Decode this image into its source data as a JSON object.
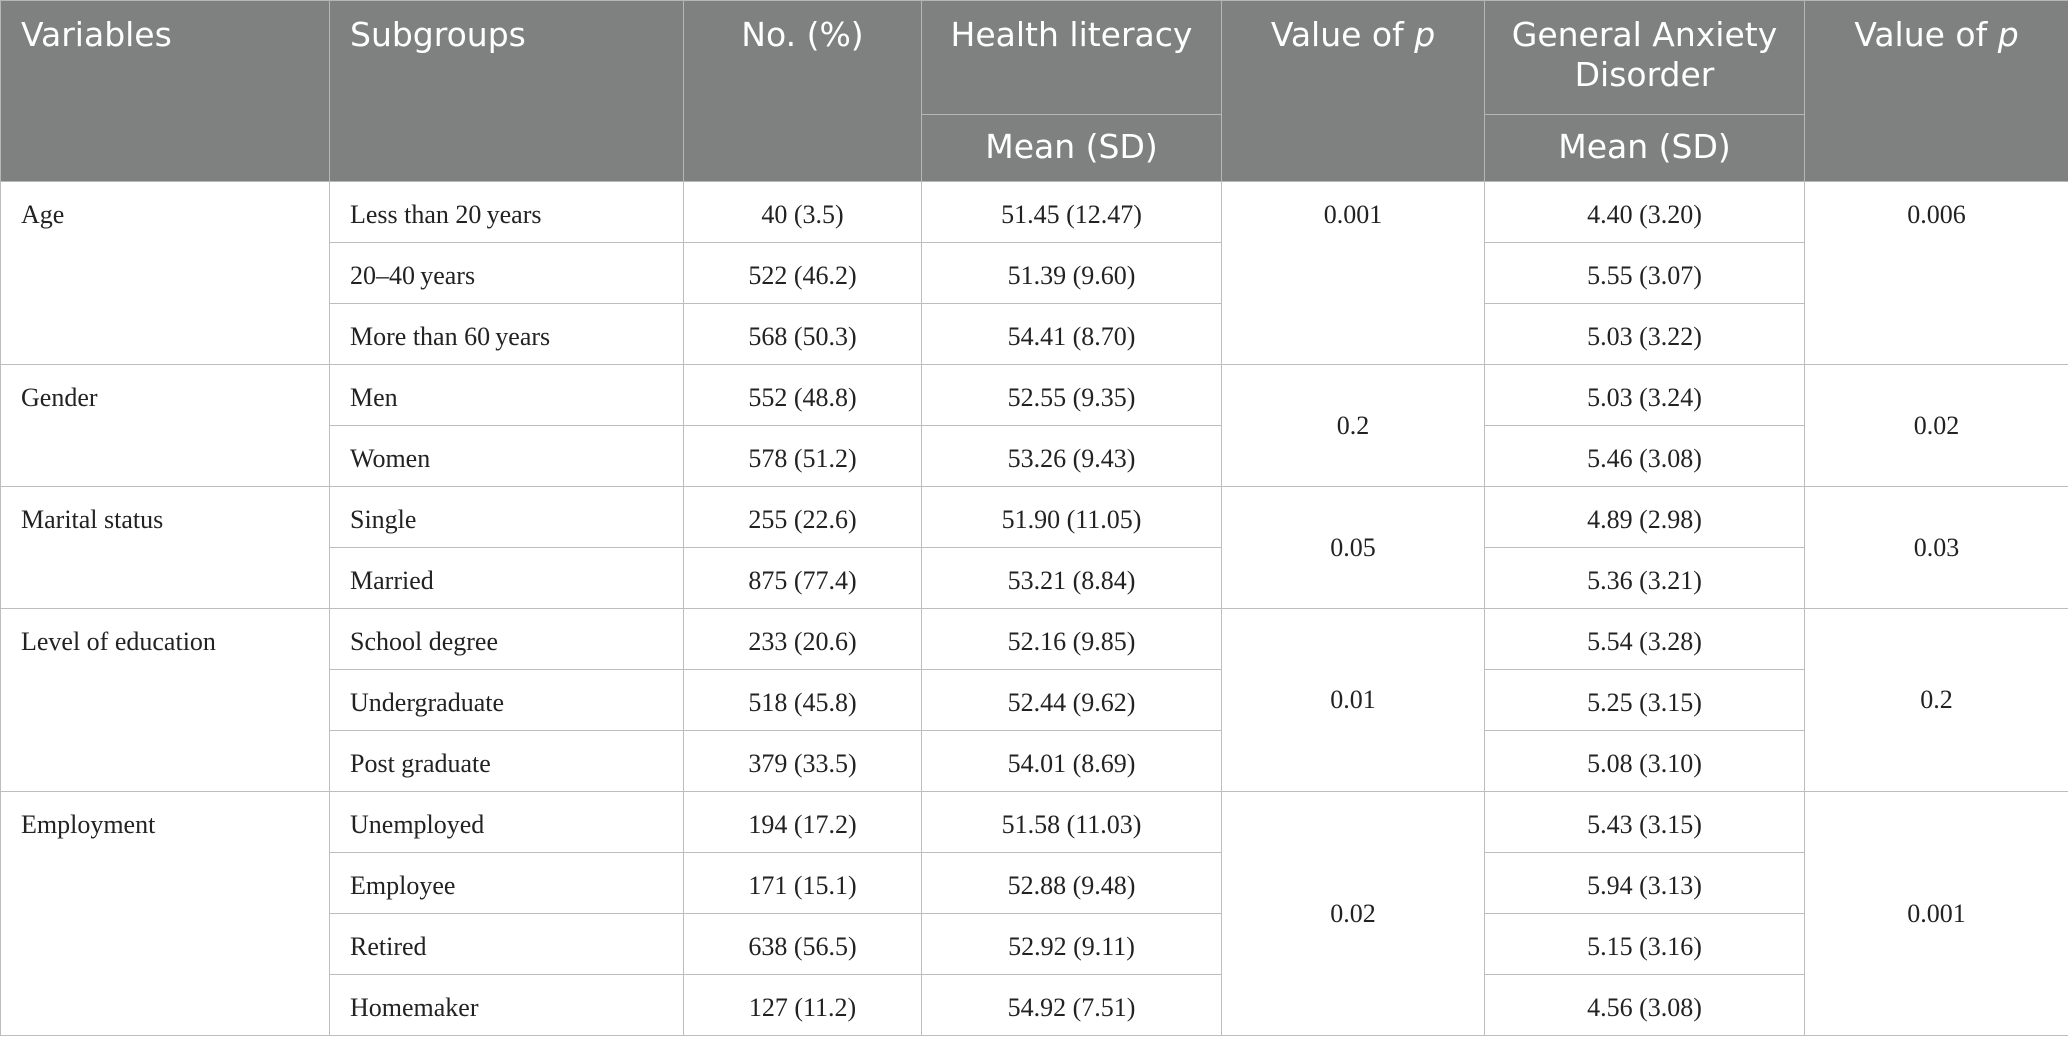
{
  "header": {
    "variables": "Variables",
    "subgroups": "Subgroups",
    "no_percent": "No. (%)",
    "health_literacy": "Health literacy",
    "value_of": "Value of ",
    "p": "p",
    "gad": "General Anxiety Disorder",
    "mean_sd_hl": "Mean (SD)",
    "mean_sd_gad": "Mean (SD)"
  },
  "groups": [
    {
      "variable": "Age",
      "p_hl": "0.001",
      "p_gad": "0.006",
      "rows": [
        {
          "subgroup": "Less than 20 years",
          "n": "40 (3.5)",
          "hl": "51.45 (12.47)",
          "gad": "4.40 (3.20)"
        },
        {
          "subgroup": "20–40 years",
          "n": "522 (46.2)",
          "hl": "51.39 (9.60)",
          "gad": "5.55 (3.07)"
        },
        {
          "subgroup": "More than 60 years",
          "n": "568 (50.3)",
          "hl": "54.41 (8.70)",
          "gad": "5.03 (3.22)"
        }
      ]
    },
    {
      "variable": "Gender",
      "p_hl": "0.2",
      "p_gad": "0.02",
      "rows": [
        {
          "subgroup": "Men",
          "n": "552 (48.8)",
          "hl": "52.55 (9.35)",
          "gad": "5.03 (3.24)"
        },
        {
          "subgroup": "Women",
          "n": "578 (51.2)",
          "hl": "53.26 (9.43)",
          "gad": "5.46 (3.08)"
        }
      ]
    },
    {
      "variable": "Marital status",
      "p_hl": "0.05",
      "p_gad": "0.03",
      "rows": [
        {
          "subgroup": "Single",
          "n": "255 (22.6)",
          "hl": "51.90 (11.05)",
          "gad": "4.89 (2.98)"
        },
        {
          "subgroup": "Married",
          "n": "875 (77.4)",
          "hl": "53.21 (8.84)",
          "gad": "5.36 (3.21)"
        }
      ]
    },
    {
      "variable": "Level of education",
      "p_hl": "0.01",
      "p_gad": "0.2",
      "rows": [
        {
          "subgroup": "School degree",
          "n": "233 (20.6)",
          "hl": "52.16 (9.85)",
          "gad": "5.54 (3.28)"
        },
        {
          "subgroup": "Undergraduate",
          "n": "518 (45.8)",
          "hl": "52.44 (9.62)",
          "gad": "5.25 (3.15)"
        },
        {
          "subgroup": "Post graduate",
          "n": "379 (33.5)",
          "hl": "54.01 (8.69)",
          "gad": "5.08 (3.10)"
        }
      ]
    },
    {
      "variable": "Employment",
      "p_hl": "0.02",
      "p_gad": "0.001",
      "rows": [
        {
          "subgroup": "Unemployed",
          "n": "194 (17.2)",
          "hl": "51.58 (11.03)",
          "gad": "5.43 (3.15)"
        },
        {
          "subgroup": "Employee",
          "n": "171 (15.1)",
          "hl": "52.88 (9.48)",
          "gad": "5.94 (3.13)"
        },
        {
          "subgroup": "Retired",
          "n": "638 (56.5)",
          "hl": "52.92 (9.11)",
          "gad": "5.15 (3.16)"
        },
        {
          "subgroup": "Homemaker",
          "n": "127 (11.2)",
          "hl": "54.92 (7.51)",
          "gad": "4.56 (3.08)"
        }
      ]
    }
  ]
}
